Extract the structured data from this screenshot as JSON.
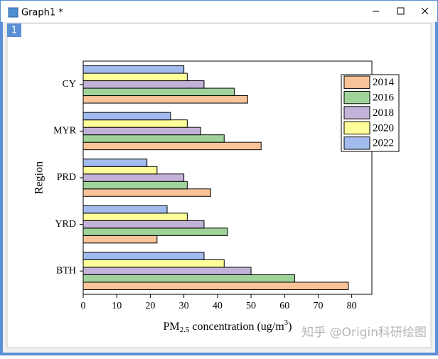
{
  "window": {
    "title": "Graph1 *",
    "layer": "1",
    "watermark": "知乎 @Origin科研绘图"
  },
  "chart_data": {
    "type": "hbar",
    "xlabel": {
      "main": "PM",
      "sub": "2.5",
      "mid": " concentration (ug/m",
      "sup": "3",
      "end": ")"
    },
    "ylabel": "Region",
    "categories": [
      "BTH",
      "YRD",
      "PRD",
      "MYR",
      "CY"
    ],
    "series": [
      {
        "name": "2014",
        "color": "#f9c49a",
        "values": [
          79,
          22,
          38,
          53,
          49
        ]
      },
      {
        "name": "2016",
        "color": "#9fd39a",
        "values": [
          63,
          43,
          31,
          42,
          45
        ]
      },
      {
        "name": "2018",
        "color": "#c2b2d8",
        "values": [
          50,
          36,
          30,
          35,
          36
        ]
      },
      {
        "name": "2020",
        "color": "#ffff99",
        "values": [
          42,
          31,
          22,
          31,
          31
        ]
      },
      {
        "name": "2022",
        "color": "#a2bbef",
        "values": [
          36,
          25,
          19,
          26,
          30
        ]
      }
    ],
    "xlim": [
      0,
      86
    ],
    "xticks": [
      0,
      10,
      20,
      30,
      40,
      50,
      60,
      70,
      80
    ],
    "legend": "upper right"
  }
}
